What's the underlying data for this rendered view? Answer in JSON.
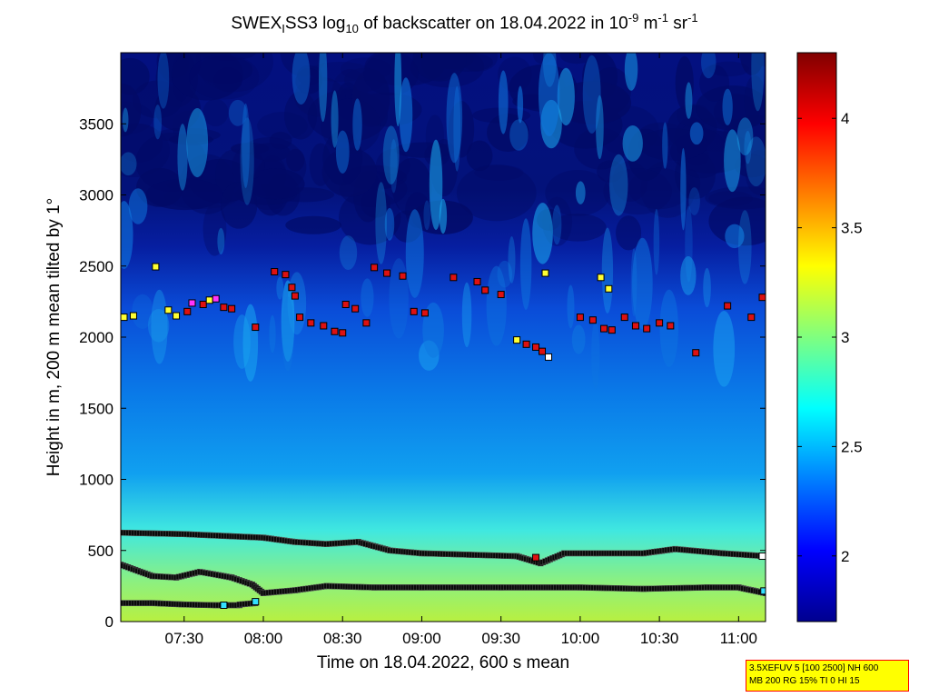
{
  "chart_data": {
    "type": "heatmap",
    "title_parts": {
      "a": "SWEX",
      "sub1": "I",
      "b": "SS3 log",
      "sub2": "10",
      "c": " of backscatter on 18.04.2022 in 10",
      "sup1": "-9",
      "d": " m",
      "sup2": "-1",
      "e": " sr",
      "sup3": "-1"
    },
    "xlabel": "Time on 18.04.2022, 600 s mean",
    "ylabel": "Height in m, 200 m mean tilted by 1°",
    "x_range_hours": [
      7.1,
      11.17
    ],
    "ylim": [
      0,
      4000
    ],
    "x_ticks": [
      {
        "h": 7.5,
        "label": "07:30"
      },
      {
        "h": 8.0,
        "label": "08:00"
      },
      {
        "h": 8.5,
        "label": "08:30"
      },
      {
        "h": 9.0,
        "label": "09:00"
      },
      {
        "h": 9.5,
        "label": "09:30"
      },
      {
        "h": 10.0,
        "label": "10:00"
      },
      {
        "h": 10.5,
        "label": "10:30"
      },
      {
        "h": 11.0,
        "label": "11:00"
      }
    ],
    "y_ticks": [
      0,
      500,
      1000,
      1500,
      2000,
      2500,
      3000,
      3500
    ],
    "colorbar": {
      "range": [
        1.7,
        4.3
      ],
      "ticks": [
        "2",
        "2.5",
        "3",
        "3.5",
        "4"
      ],
      "tick_values": [
        2,
        2.5,
        3,
        3.5,
        4
      ]
    },
    "layer_lines": [
      {
        "name": "",
        "x": [
          7.1,
          7.5,
          8.0,
          8.2,
          8.4,
          8.6,
          8.8,
          9.0,
          9.3,
          9.6,
          9.75,
          9.9,
          10.1,
          10.4,
          10.6,
          10.9,
          11.17
        ],
        "y": [
          625,
          615,
          590,
          560,
          545,
          560,
          500,
          480,
          470,
          460,
          410,
          480,
          480,
          480,
          510,
          480,
          460
        ]
      },
      {
        "name": "",
        "x": [
          7.1,
          7.3,
          7.45,
          7.6,
          7.8,
          7.93,
          8.0,
          8.2,
          8.4,
          8.7,
          9.0,
          9.5,
          10.0,
          10.4,
          10.8,
          11.0,
          11.17
        ],
        "y": [
          400,
          320,
          310,
          350,
          310,
          260,
          200,
          220,
          250,
          240,
          240,
          240,
          240,
          230,
          240,
          240,
          200
        ]
      },
      {
        "name": "",
        "x": [
          7.1,
          7.3,
          7.5,
          7.7,
          7.85
        ],
        "y": [
          130,
          130,
          120,
          115,
          115
        ]
      },
      {
        "name": "",
        "x": [
          7.85,
          7.95
        ],
        "y": [
          120,
          130
        ]
      }
    ],
    "cloud_markers": [
      {
        "x": 7.12,
        "y": 2140,
        "c": "yellow"
      },
      {
        "x": 7.18,
        "y": 2150,
        "c": "yellow"
      },
      {
        "x": 7.32,
        "y": 2495,
        "c": "yellow"
      },
      {
        "x": 7.4,
        "y": 2190,
        "c": "yellow"
      },
      {
        "x": 7.45,
        "y": 2150,
        "c": "yellow"
      },
      {
        "x": 7.52,
        "y": 2180,
        "c": "red"
      },
      {
        "x": 7.55,
        "y": 2240,
        "c": "magenta"
      },
      {
        "x": 7.62,
        "y": 2230,
        "c": "red"
      },
      {
        "x": 7.66,
        "y": 2260,
        "c": "yellow"
      },
      {
        "x": 7.7,
        "y": 2270,
        "c": "magenta"
      },
      {
        "x": 7.75,
        "y": 2210,
        "c": "red"
      },
      {
        "x": 7.8,
        "y": 2200,
        "c": "red"
      },
      {
        "x": 7.95,
        "y": 2070,
        "c": "red"
      },
      {
        "x": 8.07,
        "y": 2460,
        "c": "red"
      },
      {
        "x": 8.14,
        "y": 2440,
        "c": "red"
      },
      {
        "x": 8.18,
        "y": 2350,
        "c": "red"
      },
      {
        "x": 8.2,
        "y": 2290,
        "c": "red"
      },
      {
        "x": 8.23,
        "y": 2140,
        "c": "red"
      },
      {
        "x": 8.3,
        "y": 2100,
        "c": "red"
      },
      {
        "x": 8.38,
        "y": 2080,
        "c": "red"
      },
      {
        "x": 8.45,
        "y": 2040,
        "c": "red"
      },
      {
        "x": 8.5,
        "y": 2030,
        "c": "red"
      },
      {
        "x": 8.52,
        "y": 2230,
        "c": "red"
      },
      {
        "x": 8.58,
        "y": 2200,
        "c": "red"
      },
      {
        "x": 8.65,
        "y": 2100,
        "c": "red"
      },
      {
        "x": 8.7,
        "y": 2490,
        "c": "red"
      },
      {
        "x": 8.78,
        "y": 2450,
        "c": "red"
      },
      {
        "x": 8.88,
        "y": 2430,
        "c": "red"
      },
      {
        "x": 8.95,
        "y": 2180,
        "c": "red"
      },
      {
        "x": 9.02,
        "y": 2170,
        "c": "red"
      },
      {
        "x": 9.2,
        "y": 2420,
        "c": "red"
      },
      {
        "x": 9.35,
        "y": 2390,
        "c": "red"
      },
      {
        "x": 9.4,
        "y": 2330,
        "c": "red"
      },
      {
        "x": 9.5,
        "y": 2300,
        "c": "red"
      },
      {
        "x": 9.6,
        "y": 1980,
        "c": "yellow"
      },
      {
        "x": 9.66,
        "y": 1950,
        "c": "red"
      },
      {
        "x": 9.72,
        "y": 1930,
        "c": "red"
      },
      {
        "x": 9.76,
        "y": 1900,
        "c": "red"
      },
      {
        "x": 9.8,
        "y": 1860,
        "c": "white"
      },
      {
        "x": 9.78,
        "y": 2450,
        "c": "yellow"
      },
      {
        "x": 10.0,
        "y": 2140,
        "c": "red"
      },
      {
        "x": 10.08,
        "y": 2120,
        "c": "red"
      },
      {
        "x": 10.15,
        "y": 2060,
        "c": "red"
      },
      {
        "x": 10.2,
        "y": 2050,
        "c": "red"
      },
      {
        "x": 10.13,
        "y": 2420,
        "c": "yellow"
      },
      {
        "x": 10.18,
        "y": 2340,
        "c": "yellow"
      },
      {
        "x": 10.28,
        "y": 2140,
        "c": "red"
      },
      {
        "x": 10.35,
        "y": 2080,
        "c": "red"
      },
      {
        "x": 10.42,
        "y": 2060,
        "c": "red"
      },
      {
        "x": 10.5,
        "y": 2100,
        "c": "red"
      },
      {
        "x": 10.57,
        "y": 2080,
        "c": "red"
      },
      {
        "x": 10.73,
        "y": 1890,
        "c": "red"
      },
      {
        "x": 10.93,
        "y": 2220,
        "c": "red"
      },
      {
        "x": 11.08,
        "y": 2140,
        "c": "red"
      },
      {
        "x": 11.15,
        "y": 2280,
        "c": "red"
      },
      {
        "x": 9.72,
        "y": 450,
        "c": "red"
      },
      {
        "x": 7.75,
        "y": 115,
        "c": "cyan"
      },
      {
        "x": 7.95,
        "y": 140,
        "c": "cyan"
      },
      {
        "x": 11.15,
        "y": 460,
        "c": "white"
      },
      {
        "x": 11.16,
        "y": 215,
        "c": "cyan"
      }
    ]
  },
  "settings_box": {
    "line1": "3.5XEFUV 5 [100 2500] NH 600",
    "line2": "MB 200 RG 15% TI 0 HI 15"
  },
  "colors": {
    "yellow": "#ffff33",
    "red": "#dd1111",
    "magenta": "#ff33ff",
    "white": "#ffffff",
    "cyan": "#33e0ff"
  }
}
